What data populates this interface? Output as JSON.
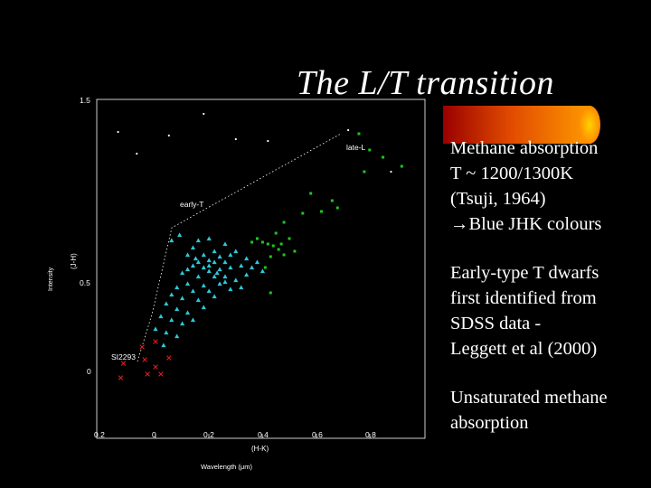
{
  "slide": {
    "title": "The L/T  transition",
    "bullets": [
      [
        "Methane absorption",
        "  T ~ 1200/1300K",
        "(Tsuji, 1964)",
        "→Blue JHK colours"
      ],
      [
        "Early-type T dwarfs",
        "first identified from",
        "SDSS data -",
        "  Leggett et al  (2000)"
      ],
      [
        "Unsaturated methane",
        "absorption"
      ]
    ]
  },
  "plot": {
    "y_ticks": [
      "1.5",
      "0.5",
      "0"
    ],
    "x_ticks": [
      "0.2",
      "0",
      "0.2",
      "0.4",
      "0.6",
      "0.8"
    ],
    "y_label": "(J-H)",
    "y_label_outer": "Intensity",
    "x_label": "(H-K)",
    "x_label_outer": "Wavelength (μm)",
    "annotations": {
      "late": "late-L",
      "early": "early-T",
      "star": "SI2293"
    },
    "colors": {
      "cyan": "#2fc7d6",
      "green": "#1ec81e",
      "red": "#e02020",
      "white": "#ffffff",
      "bar": "#ff8c00"
    }
  },
  "chart_data": {
    "type": "scatter",
    "xlabel": "(H-K)",
    "ylabel": "(J-H)",
    "xlim": [
      -0.3,
      1.0
    ],
    "ylim": [
      -0.1,
      1.55
    ],
    "series": [
      {
        "points": [
          [
            -0.14,
            1.32
          ],
          [
            -0.07,
            1.2
          ],
          [
            0.05,
            1.3
          ],
          [
            0.18,
            1.42
          ],
          [
            0.3,
            1.28
          ],
          [
            0.42,
            1.27
          ],
          [
            0.72,
            1.33
          ],
          [
            0.88,
            1.1
          ]
        ]
      },
      {
        "points": [
          [
            0.76,
            1.31
          ],
          [
            0.8,
            1.22
          ],
          [
            0.85,
            1.18
          ],
          [
            0.92,
            1.13
          ],
          [
            0.78,
            1.1
          ],
          [
            0.58,
            0.98
          ],
          [
            0.66,
            0.94
          ],
          [
            0.68,
            0.9
          ],
          [
            0.62,
            0.88
          ],
          [
            0.55,
            0.87
          ],
          [
            0.48,
            0.82
          ],
          [
            0.5,
            0.73
          ],
          [
            0.47,
            0.7
          ],
          [
            0.44,
            0.69
          ],
          [
            0.46,
            0.67
          ],
          [
            0.52,
            0.66
          ],
          [
            0.48,
            0.64
          ],
          [
            0.45,
            0.76
          ],
          [
            0.43,
            0.63
          ],
          [
            0.42,
            0.7
          ],
          [
            0.4,
            0.71
          ],
          [
            0.38,
            0.73
          ],
          [
            0.36,
            0.71
          ],
          [
            0.41,
            0.57
          ],
          [
            0.43,
            0.43
          ]
        ]
      },
      {
        "points": [
          [
            0.16,
            0.72
          ],
          [
            0.2,
            0.73
          ],
          [
            0.14,
            0.68
          ],
          [
            0.26,
            0.7
          ],
          [
            0.3,
            0.66
          ],
          [
            0.12,
            0.64
          ],
          [
            0.18,
            0.64
          ],
          [
            0.22,
            0.66
          ],
          [
            0.24,
            0.63
          ],
          [
            0.2,
            0.61
          ],
          [
            0.16,
            0.6
          ],
          [
            0.22,
            0.6
          ],
          [
            0.26,
            0.6
          ],
          [
            0.14,
            0.58
          ],
          [
            0.12,
            0.56
          ],
          [
            0.18,
            0.57
          ],
          [
            0.2,
            0.55
          ],
          [
            0.24,
            0.56
          ],
          [
            0.28,
            0.57
          ],
          [
            0.32,
            0.58
          ],
          [
            0.1,
            0.54
          ],
          [
            0.16,
            0.52
          ],
          [
            0.22,
            0.52
          ],
          [
            0.26,
            0.52
          ],
          [
            0.3,
            0.5
          ],
          [
            0.34,
            0.53
          ],
          [
            0.12,
            0.48
          ],
          [
            0.18,
            0.47
          ],
          [
            0.24,
            0.48
          ],
          [
            0.08,
            0.46
          ],
          [
            0.14,
            0.44
          ],
          [
            0.2,
            0.44
          ],
          [
            0.28,
            0.45
          ],
          [
            0.06,
            0.42
          ],
          [
            0.1,
            0.4
          ],
          [
            0.16,
            0.39
          ],
          [
            0.22,
            0.41
          ],
          [
            0.04,
            0.37
          ],
          [
            0.08,
            0.34
          ],
          [
            0.12,
            0.32
          ],
          [
            0.18,
            0.35
          ],
          [
            0.02,
            0.3
          ],
          [
            0.06,
            0.28
          ],
          [
            0.1,
            0.26
          ],
          [
            0.14,
            0.28
          ],
          [
            0.0,
            0.23
          ],
          [
            0.04,
            0.21
          ],
          [
            0.08,
            0.19
          ],
          [
            0.03,
            0.14
          ],
          [
            0.06,
            0.72
          ],
          [
            0.09,
            0.75
          ],
          [
            0.28,
            0.64
          ],
          [
            0.34,
            0.62
          ],
          [
            0.36,
            0.57
          ],
          [
            0.38,
            0.6
          ],
          [
            0.4,
            0.55
          ],
          [
            0.32,
            0.46
          ],
          [
            0.15,
            0.62
          ],
          [
            0.2,
            0.58
          ],
          [
            0.23,
            0.54
          ],
          [
            0.26,
            0.49
          ]
        ]
      },
      {
        "points": [
          [
            0.0,
            0.16
          ],
          [
            -0.05,
            0.13
          ],
          [
            0.05,
            0.07
          ],
          [
            -0.04,
            0.06
          ],
          [
            -0.12,
            0.04
          ],
          [
            0.0,
            0.02
          ],
          [
            0.02,
            -0.02
          ],
          [
            -0.13,
            -0.04
          ],
          [
            -0.03,
            -0.02
          ]
        ]
      }
    ]
  }
}
